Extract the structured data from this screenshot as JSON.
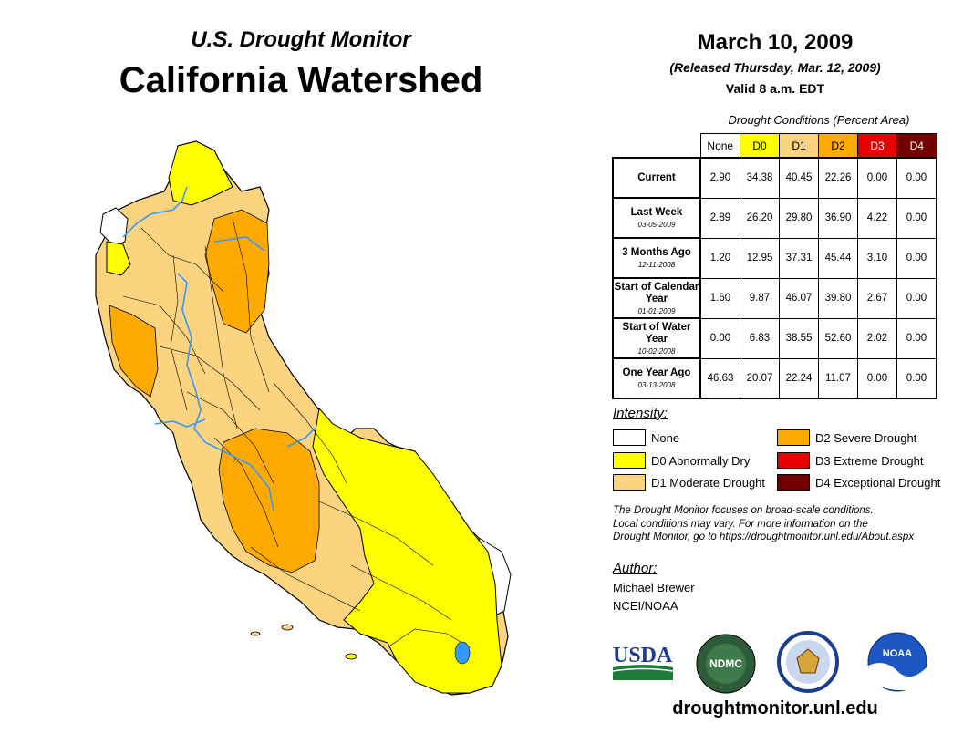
{
  "header": {
    "program": "U.S. Drought Monitor",
    "region": "California Watershed",
    "date": "March 10, 2009",
    "released": "(Released Thursday, Mar. 12, 2009)",
    "valid": "Valid 8 a.m. EDT"
  },
  "table": {
    "caption": "Drought Conditions (Percent Area)",
    "columns": [
      "None",
      "D0",
      "D1",
      "D2",
      "D3",
      "D4"
    ],
    "column_colors": [
      "#ffffff",
      "#ffff00",
      "#fcd37f",
      "#ffaa00",
      "#e60000",
      "#730000"
    ],
    "column_text_colors": [
      "#000000",
      "#000000",
      "#000000",
      "#000000",
      "#ffffff",
      "#ffffff"
    ],
    "rows": [
      {
        "label": "Current",
        "date": "",
        "values": [
          "2.90",
          "34.38",
          "40.45",
          "22.26",
          "0.00",
          "0.00"
        ]
      },
      {
        "label": "Last Week",
        "date": "03-05-2009",
        "values": [
          "2.89",
          "26.20",
          "29.80",
          "36.90",
          "4.22",
          "0.00"
        ]
      },
      {
        "label": "3 Months Ago",
        "date": "12-11-2008",
        "values": [
          "1.20",
          "12.95",
          "37.31",
          "45.44",
          "3.10",
          "0.00"
        ]
      },
      {
        "label": "Start of Calendar Year",
        "date": "01-01-2009",
        "values": [
          "1.60",
          "9.87",
          "46.07",
          "39.80",
          "2.67",
          "0.00"
        ]
      },
      {
        "label": "Start of Water Year",
        "date": "10-02-2008",
        "values": [
          "0.00",
          "6.83",
          "38.55",
          "52.60",
          "2.02",
          "0.00"
        ]
      },
      {
        "label": "One Year Ago",
        "date": "03-13-2008",
        "values": [
          "46.63",
          "20.07",
          "22.24",
          "11.07",
          "0.00",
          "0.00"
        ]
      }
    ]
  },
  "legend": {
    "title": "Intensity:",
    "items": [
      {
        "label": "None",
        "color": "#ffffff"
      },
      {
        "label": "D0 Abnormally Dry",
        "color": "#ffff00"
      },
      {
        "label": "D1 Moderate Drought",
        "color": "#fcd37f"
      },
      {
        "label": "D2 Severe Drought",
        "color": "#ffaa00"
      },
      {
        "label": "D3 Extreme Drought",
        "color": "#e60000"
      },
      {
        "label": "D4 Exceptional Drought",
        "color": "#730000"
      }
    ]
  },
  "note": {
    "line1": "The Drought Monitor focuses on broad-scale conditions.",
    "line2": "Local conditions may vary. For more information on the",
    "line3": "Drought Monitor, go to https://droughtmonitor.unl.edu/About.aspx"
  },
  "author": {
    "title": "Author:",
    "name": "Michael Brewer",
    "org": "NCEI/NOAA"
  },
  "logos": {
    "usda": "USDA",
    "ndmc": "NDMC",
    "noaa": "NOAA"
  },
  "footer": {
    "url": "droughtmonitor.unl.edu"
  },
  "map_colors": {
    "none": "#ffffff",
    "d0": "#ffff00",
    "d1": "#fcd37f",
    "d2": "#ffaa00",
    "water": "#3399ff",
    "border": "#000000"
  }
}
